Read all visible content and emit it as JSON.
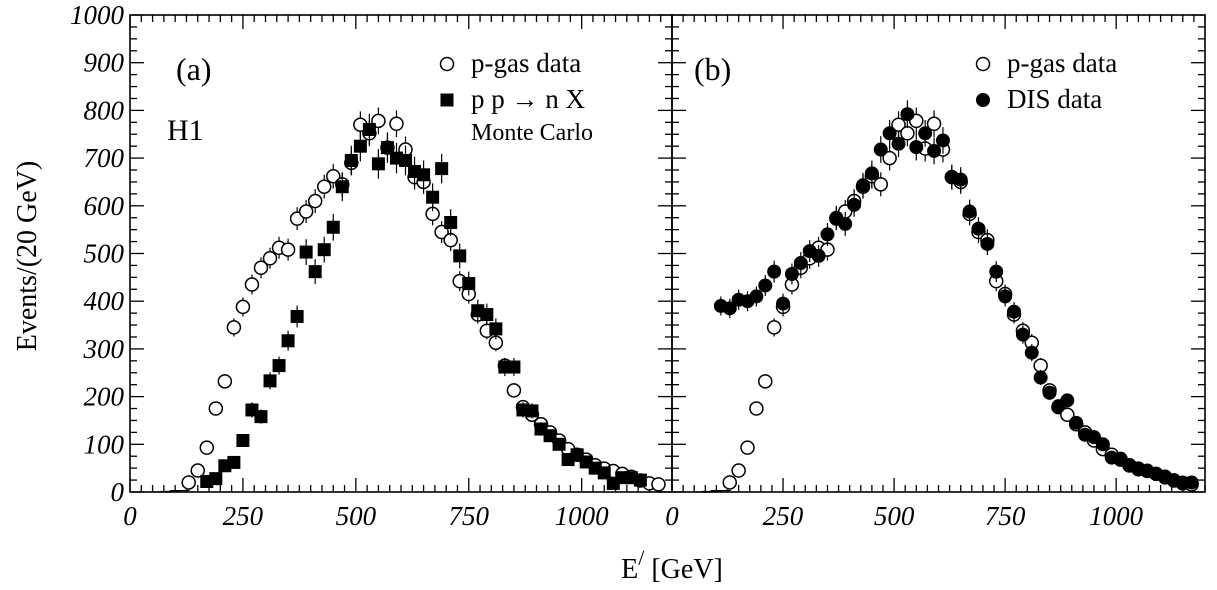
{
  "figure": {
    "ylabel": "Events/(20 GeV)",
    "xlabel_main": "E",
    "xlabel_sup": "/",
    "xlabel_unit": " [GeV]",
    "y_tick_labels": [
      "0",
      "100",
      "200",
      "300",
      "400",
      "500",
      "600",
      "700",
      "800",
      "900",
      "1000"
    ],
    "x_tick_labels_left": [
      "0",
      "250",
      "500",
      "750",
      "1000"
    ],
    "x_tick_labels_right": [
      "0",
      "250",
      "500",
      "750",
      "1000"
    ]
  },
  "chart_data": [
    {
      "type": "scatter",
      "panel_label": "(a)",
      "experiment_label": "H1",
      "xlim": [
        0,
        1200
      ],
      "ylim": [
        0,
        1000
      ],
      "xticks": [
        0,
        250,
        500,
        750,
        1000
      ],
      "yticks": [
        0,
        100,
        200,
        300,
        400,
        500,
        600,
        700,
        800,
        900,
        1000
      ],
      "legend": {
        "placement": "top-right",
        "entries": [
          {
            "marker": "open-circle",
            "text": "p-gas data"
          },
          {
            "marker": "filled-square",
            "text": "p p → n X",
            "subtext": "Monte Carlo"
          }
        ]
      },
      "series": [
        {
          "name": "p-gas data",
          "marker": "open-circle",
          "x": [
            70,
            90,
            110,
            130,
            150,
            170,
            190,
            210,
            230,
            250,
            270,
            290,
            310,
            330,
            350,
            370,
            390,
            410,
            430,
            450,
            470,
            490,
            510,
            530,
            550,
            570,
            590,
            610,
            630,
            650,
            670,
            690,
            710,
            730,
            750,
            770,
            790,
            810,
            830,
            850,
            870,
            890,
            910,
            930,
            950,
            970,
            990,
            1010,
            1030,
            1050,
            1070,
            1090,
            1110,
            1130,
            1150,
            1170
          ],
          "y": [
            0,
            1,
            3,
            20,
            45,
            93,
            175,
            232,
            345,
            388,
            435,
            470,
            490,
            512,
            508,
            573,
            588,
            610,
            640,
            662,
            645,
            690,
            770,
            752,
            778,
            722,
            772,
            718,
            660,
            650,
            583,
            545,
            528,
            442,
            415,
            372,
            338,
            313,
            265,
            213,
            178,
            162,
            142,
            125,
            108,
            90,
            78,
            68,
            56,
            49,
            44,
            38,
            32,
            24,
            18,
            16
          ],
          "err": [
            1,
            2,
            3,
            5,
            7,
            10,
            13,
            15,
            19,
            20,
            21,
            22,
            22,
            23,
            23,
            24,
            24,
            25,
            25,
            26,
            25,
            26,
            28,
            27,
            28,
            27,
            28,
            27,
            26,
            25,
            24,
            23,
            23,
            21,
            20,
            19,
            18,
            18,
            16,
            15,
            13,
            13,
            12,
            11,
            10,
            10,
            9,
            8,
            8,
            7,
            7,
            6,
            6,
            5,
            4,
            4
          ]
        },
        {
          "name": "p p → n X",
          "marker": "filled-square",
          "x": [
            170,
            190,
            210,
            230,
            250,
            270,
            290,
            310,
            330,
            350,
            370,
            390,
            410,
            430,
            450,
            470,
            490,
            510,
            530,
            550,
            570,
            590,
            610,
            630,
            650,
            670,
            690,
            710,
            730,
            750,
            770,
            790,
            810,
            830,
            850,
            870,
            890,
            910,
            930,
            950,
            970,
            990,
            1010,
            1030,
            1050,
            1070,
            1090,
            1110,
            1130
          ],
          "y": [
            22,
            28,
            55,
            62,
            108,
            172,
            158,
            233,
            265,
            317,
            368,
            503,
            462,
            508,
            555,
            640,
            695,
            725,
            760,
            688,
            722,
            700,
            695,
            672,
            665,
            618,
            678,
            565,
            495,
            437,
            380,
            372,
            342,
            262,
            262,
            172,
            170,
            132,
            118,
            100,
            68,
            78,
            63,
            50,
            40,
            18,
            30,
            30,
            25
          ],
          "err": [
            6,
            7,
            9,
            10,
            13,
            16,
            15,
            18,
            19,
            21,
            23,
            27,
            26,
            27,
            28,
            30,
            31,
            32,
            33,
            31,
            32,
            32,
            31,
            31,
            30,
            29,
            31,
            28,
            26,
            25,
            23,
            23,
            22,
            19,
            19,
            16,
            16,
            14,
            13,
            12,
            10,
            11,
            10,
            9,
            8,
            5,
            7,
            7,
            6
          ]
        }
      ]
    },
    {
      "type": "scatter",
      "panel_label": "(b)",
      "xlim": [
        0,
        1200
      ],
      "ylim": [
        0,
        1000
      ],
      "xticks": [
        0,
        250,
        500,
        750,
        1000
      ],
      "yticks": [
        0,
        100,
        200,
        300,
        400,
        500,
        600,
        700,
        800,
        900,
        1000
      ],
      "legend": {
        "placement": "top-right",
        "entries": [
          {
            "marker": "open-circle",
            "text": "p-gas data"
          },
          {
            "marker": "filled-circle",
            "text": "DIS data"
          }
        ]
      },
      "series": [
        {
          "name": "p-gas data",
          "marker": "open-circle",
          "x": [
            70,
            90,
            110,
            130,
            150,
            170,
            190,
            210,
            230,
            250,
            270,
            290,
            310,
            330,
            350,
            370,
            390,
            410,
            430,
            450,
            470,
            490,
            510,
            530,
            550,
            570,
            590,
            610,
            630,
            650,
            670,
            690,
            710,
            730,
            750,
            770,
            790,
            810,
            830,
            850,
            870,
            890,
            910,
            930,
            950,
            970,
            990,
            1010,
            1030,
            1050,
            1070,
            1090,
            1110,
            1130,
            1150,
            1170
          ],
          "y": [
            0,
            1,
            3,
            20,
            45,
            93,
            175,
            232,
            345,
            388,
            435,
            470,
            490,
            512,
            508,
            573,
            588,
            610,
            640,
            662,
            645,
            700,
            770,
            752,
            778,
            720,
            772,
            718,
            660,
            650,
            583,
            545,
            528,
            442,
            415,
            372,
            338,
            313,
            265,
            213,
            178,
            162,
            142,
            125,
            108,
            90,
            78,
            68,
            56,
            49,
            44,
            38,
            32,
            24,
            18,
            16
          ],
          "err": [
            1,
            2,
            3,
            5,
            7,
            10,
            13,
            15,
            19,
            20,
            21,
            22,
            22,
            23,
            23,
            24,
            24,
            25,
            25,
            26,
            25,
            26,
            28,
            27,
            28,
            27,
            28,
            27,
            26,
            25,
            24,
            23,
            23,
            21,
            20,
            19,
            18,
            18,
            16,
            15,
            13,
            13,
            12,
            11,
            10,
            10,
            9,
            8,
            8,
            7,
            7,
            6,
            6,
            5,
            4,
            4
          ]
        },
        {
          "name": "DIS data",
          "marker": "filled-circle",
          "x": [
            110,
            130,
            150,
            170,
            190,
            210,
            230,
            250,
            270,
            290,
            310,
            330,
            350,
            370,
            390,
            410,
            430,
            450,
            470,
            490,
            510,
            530,
            550,
            570,
            590,
            610,
            630,
            650,
            670,
            690,
            710,
            730,
            750,
            770,
            790,
            810,
            830,
            850,
            870,
            890,
            910,
            930,
            950,
            970,
            990,
            1010,
            1030,
            1050,
            1070,
            1090,
            1110,
            1130,
            1150,
            1170
          ],
          "y": [
            390,
            385,
            403,
            400,
            410,
            433,
            462,
            395,
            457,
            480,
            505,
            495,
            540,
            575,
            562,
            602,
            643,
            668,
            718,
            752,
            730,
            792,
            723,
            752,
            715,
            737,
            660,
            655,
            588,
            552,
            520,
            462,
            410,
            378,
            330,
            292,
            240,
            208,
            180,
            192,
            145,
            120,
            115,
            100,
            72,
            70,
            55,
            47,
            45,
            38,
            30,
            25,
            20,
            20
          ],
          "err": [
            20,
            20,
            21,
            21,
            21,
            22,
            23,
            21,
            22,
            23,
            23,
            23,
            24,
            25,
            25,
            25,
            26,
            27,
            28,
            28,
            28,
            29,
            28,
            28,
            28,
            28,
            26,
            26,
            25,
            24,
            23,
            22,
            21,
            20,
            19,
            18,
            16,
            15,
            14,
            14,
            12,
            11,
            11,
            10,
            9,
            9,
            8,
            7,
            7,
            6,
            6,
            5,
            5,
            5
          ]
        }
      ]
    }
  ]
}
